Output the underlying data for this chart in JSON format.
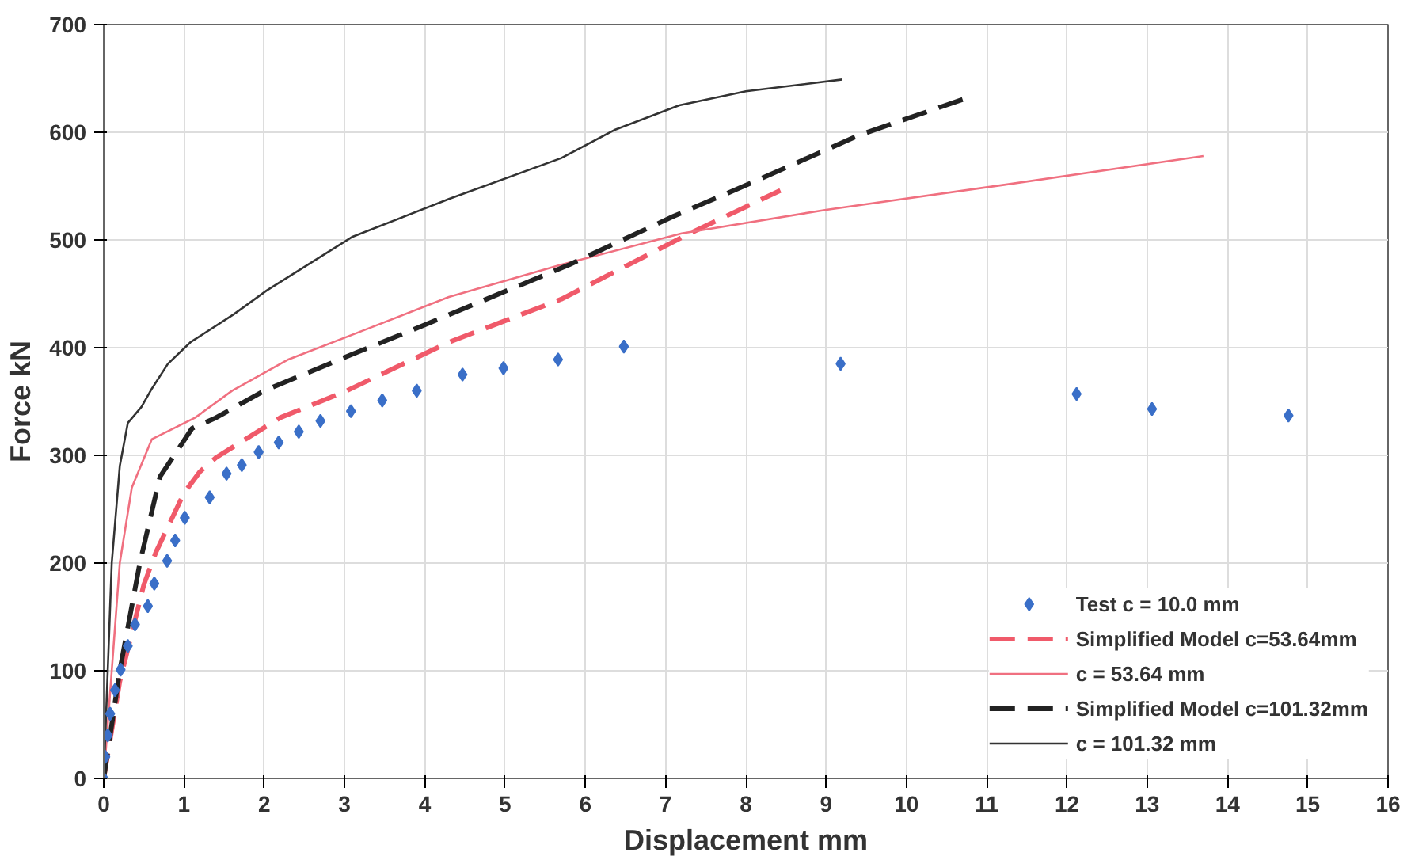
{
  "chart_data": {
    "type": "line",
    "xlabel": "Displacement mm",
    "ylabel": "Force kN",
    "xlim": [
      0,
      16
    ],
    "ylim": [
      0,
      700
    ],
    "xticks": [
      0,
      1,
      2,
      3,
      4,
      5,
      6,
      7,
      8,
      9,
      10,
      11,
      12,
      13,
      14,
      15,
      16
    ],
    "yticks": [
      0,
      100,
      200,
      300,
      400,
      500,
      600,
      700
    ],
    "grid": true,
    "legend": "bottom right",
    "series": [
      {
        "name": "Test c = 10.0 mm",
        "type": "scatter",
        "marker": "diamond",
        "color": "#3a6fc8",
        "x": [
          0,
          0.02,
          0.05,
          0.08,
          0.14,
          0.21,
          0.3,
          0.39,
          0.55,
          0.63,
          0.79,
          0.89,
          1.01,
          1.32,
          1.53,
          1.72,
          1.93,
          2.18,
          2.43,
          2.7,
          3.08,
          3.47,
          3.9,
          4.47,
          4.98,
          5.66,
          6.48,
          9.18,
          12.12,
          13.06,
          14.76
        ],
        "values": [
          0,
          20,
          40,
          60,
          82,
          101,
          123,
          143,
          160,
          181,
          202,
          221,
          242,
          261,
          283,
          291,
          303,
          312,
          322,
          332,
          341,
          351,
          360,
          375,
          381,
          389,
          401,
          385,
          357,
          343,
          337
        ]
      },
      {
        "name": "Simplified Model c=53.64mm",
        "line_style": "dashed",
        "color": "#f05a6a",
        "x": [
          0,
          0.2,
          0.5,
          0.65,
          1.0,
          1.2,
          1.4,
          2.2,
          3.0,
          4.3,
          5.7,
          7.3,
          8.43
        ],
        "values": [
          0,
          90,
          180,
          210,
          265,
          285,
          298,
          335,
          359,
          405,
          445,
          506,
          546
        ]
      },
      {
        "name": "c = 53.64 mm",
        "line_style": "solid",
        "color": "#f07080",
        "x": [
          0,
          0.1,
          0.2,
          0.35,
          0.6,
          1.14,
          1.6,
          2.3,
          3.2,
          4.3,
          5.7,
          7.2,
          9.0,
          11.2,
          13.7
        ],
        "values": [
          0,
          100,
          200,
          270,
          315,
          335,
          360,
          389,
          415,
          447,
          477,
          506,
          528,
          551,
          578
        ]
      },
      {
        "name": "Simplified Model c=101.32mm",
        "line_style": "dashed",
        "color": "#222222",
        "x": [
          0,
          0.2,
          0.45,
          0.7,
          1.1,
          1.4,
          2.0,
          3.1,
          3.8,
          5.8,
          7.1,
          8.1,
          9.4,
          10.76
        ],
        "values": [
          0,
          100,
          200,
          280,
          325,
          335,
          360,
          394,
          415,
          477,
          522,
          554,
          597,
          632
        ]
      },
      {
        "name": "c = 101.32 mm",
        "line_style": "solid",
        "color": "#333333",
        "x": [
          0,
          0.1,
          0.2,
          0.3,
          0.47,
          0.6,
          0.8,
          1.08,
          1.62,
          2.03,
          3.1,
          4.3,
          5.7,
          6.36,
          7.17,
          8.0,
          9.2
        ],
        "values": [
          0,
          200,
          290,
          330,
          345,
          362,
          385,
          405,
          431,
          453,
          503,
          538,
          576,
          602,
          625,
          638,
          649
        ]
      }
    ]
  }
}
